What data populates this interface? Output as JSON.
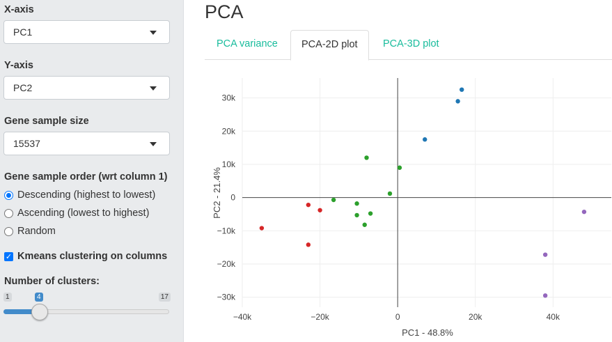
{
  "sidebar": {
    "xaxis_label": "X-axis",
    "xaxis_value": "PC1",
    "yaxis_label": "Y-axis",
    "yaxis_value": "PC2",
    "gene_size_label": "Gene sample size",
    "gene_size_value": "15537",
    "order_label": "Gene sample order (wrt column 1)",
    "order_options": [
      "Descending (highest to lowest)",
      "Ascending (lowest to highest)",
      "Random"
    ],
    "order_selected": 0,
    "kmeans_label": "Kmeans clustering on columns",
    "kmeans_checked": true,
    "clusters_label": "Number of clusters:",
    "clusters_min": "1",
    "clusters_max": "17",
    "clusters_value": "4"
  },
  "main": {
    "title": "PCA",
    "tabs": [
      "PCA variance",
      "PCA-2D plot",
      "PCA-3D plot"
    ],
    "active_tab": 1
  },
  "colors": {
    "accent": "#18bc9c",
    "slider": "#428bca",
    "check": "#0075ff"
  },
  "chart_data": {
    "type": "scatter",
    "xlabel": "PC1 - 48.8%",
    "ylabel": "PC2 - 21.4%",
    "xlim": [
      -40000,
      55000
    ],
    "ylim": [
      -33000,
      36000
    ],
    "xticks": [
      -40000,
      -20000,
      0,
      20000,
      40000
    ],
    "xtick_labels": [
      "−40k",
      "−20k",
      "0",
      "20k",
      "40k"
    ],
    "yticks": [
      -30000,
      -20000,
      -10000,
      0,
      10000,
      20000,
      30000
    ],
    "ytick_labels": [
      "−30k",
      "−20k",
      "−10k",
      "0",
      "10k",
      "20k",
      "30k"
    ],
    "grid": true,
    "series": [
      {
        "color": "#1f77b4",
        "points": [
          [
            16500,
            32500
          ],
          [
            15500,
            29000
          ],
          [
            7000,
            17500
          ]
        ]
      },
      {
        "color": "#2ca02c",
        "points": [
          [
            -8000,
            12000
          ],
          [
            500,
            9000
          ],
          [
            -2000,
            1200
          ],
          [
            -16500,
            -700
          ],
          [
            -10500,
            -1800
          ],
          [
            -7000,
            -4800
          ],
          [
            -10500,
            -5300
          ],
          [
            -8500,
            -8200
          ]
        ]
      },
      {
        "color": "#d62728",
        "points": [
          [
            -23000,
            -2200
          ],
          [
            -20000,
            -3800
          ],
          [
            -35000,
            -9200
          ],
          [
            -23000,
            -14200
          ]
        ]
      },
      {
        "color": "#9467bd",
        "points": [
          [
            48000,
            -4300
          ],
          [
            38000,
            -17200
          ],
          [
            38000,
            -29500
          ]
        ]
      }
    ]
  }
}
